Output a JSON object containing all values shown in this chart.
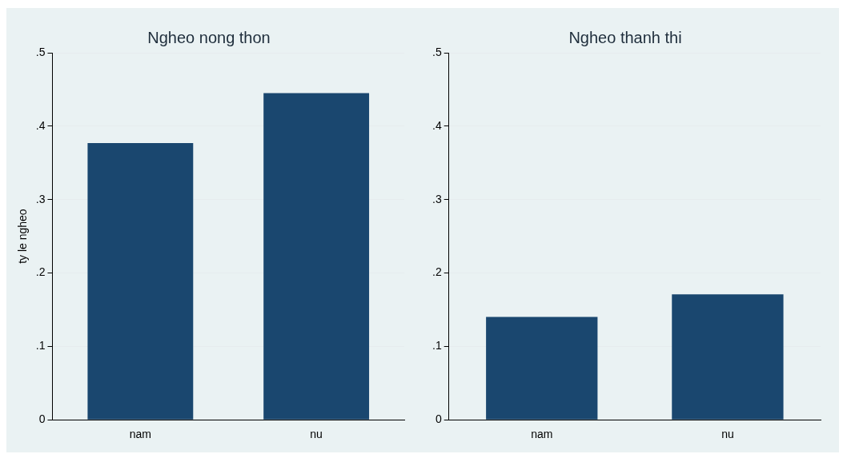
{
  "chart_data": [
    {
      "type": "bar",
      "title": "Ngheo nong thon",
      "ylabel": "ty le ngheo",
      "categories": [
        "nam",
        "nu"
      ],
      "values": [
        0.377,
        0.445
      ],
      "color": "#1a476f",
      "ylim": [
        0,
        0.5
      ],
      "yticks": [
        0,
        {
          "value": 0.1,
          "label": ".1"
        },
        {
          "value": 0.2,
          "label": ".2"
        },
        {
          "value": 0.3,
          "label": ".3"
        },
        {
          "value": 0.4,
          "label": ".4"
        },
        {
          "value": 0.5,
          "label": ".5"
        }
      ],
      "grid": "y"
    },
    {
      "type": "bar",
      "title": "Ngheo thanh thi",
      "categories": [
        "nam",
        "nu"
      ],
      "values": [
        0.14,
        0.171
      ],
      "color": "#1a476f",
      "ylim": [
        0,
        0.5
      ],
      "yticks": [
        0,
        {
          "value": 0.1,
          "label": ".1"
        },
        {
          "value": 0.2,
          "label": ".2"
        },
        {
          "value": 0.3,
          "label": ".3"
        },
        {
          "value": 0.4,
          "label": ".4"
        },
        {
          "value": 0.5,
          "label": ".5"
        }
      ],
      "grid": "y"
    }
  ]
}
